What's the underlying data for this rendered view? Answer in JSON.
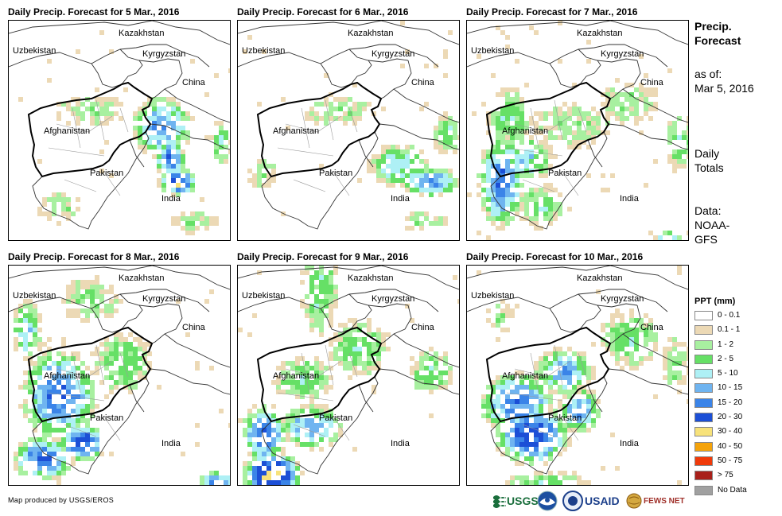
{
  "panels": [
    {
      "title": "Daily Precip. Forecast for 5 Mar., 2016",
      "day_index": 0
    },
    {
      "title": "Daily Precip. Forecast for 6 Mar., 2016",
      "day_index": 1
    },
    {
      "title": "Daily Precip. Forecast for 7 Mar., 2016",
      "day_index": 2
    },
    {
      "title": "Daily Precip. Forecast for 8 Mar., 2016",
      "day_index": 3
    },
    {
      "title": "Daily Precip. Forecast for 9 Mar., 2016",
      "day_index": 4
    },
    {
      "title": "Daily Precip. Forecast for 10 Mar., 2016",
      "day_index": 5
    }
  ],
  "countries": {
    "kazakhstan": "Kazakhstan",
    "uzbekistan": "Uzbekistan",
    "kyrgyzstan": "Kyrgyzstan",
    "china": "China",
    "afghanistan": "Afghanistan",
    "pakistan": "Pakistan",
    "india": "India"
  },
  "side": {
    "title_line1": "Precip.",
    "title_line2": "Forecast",
    "asof_line1": "as of:",
    "asof_line2": "Mar 5, 2016",
    "totals_line1": "Daily",
    "totals_line2": "Totals",
    "data_line1": "Data:",
    "data_line2": "NOAA-",
    "data_line3": "GFS"
  },
  "legend": {
    "title": "PPT (mm)",
    "items": [
      {
        "label": "0 - 0.1",
        "color": "#ffffff"
      },
      {
        "label": "0.1 - 1",
        "color": "#ecd9b5"
      },
      {
        "label": "1 - 2",
        "color": "#a8f0a0"
      },
      {
        "label": "2 - 5",
        "color": "#66e066"
      },
      {
        "label": "5 - 10",
        "color": "#aef0f5"
      },
      {
        "label": "10 - 15",
        "color": "#6fb4f0"
      },
      {
        "label": "15 - 20",
        "color": "#3b84e8"
      },
      {
        "label": "20 - 30",
        "color": "#1c4fd6"
      },
      {
        "label": "30 - 40",
        "color": "#f7e27a"
      },
      {
        "label": "40 - 50",
        "color": "#f5a30a"
      },
      {
        "label": "50 - 75",
        "color": "#f03a0a"
      },
      {
        "label": "> 75",
        "color": "#a8201a"
      },
      {
        "label": "No Data",
        "color": "#a0a0a0"
      }
    ]
  },
  "footer": {
    "credit": "Map produced by USGS/EROS"
  },
  "logos": {
    "usgs": "USGS",
    "usaid": "USAID",
    "fewsnet": "FEWS NET"
  }
}
